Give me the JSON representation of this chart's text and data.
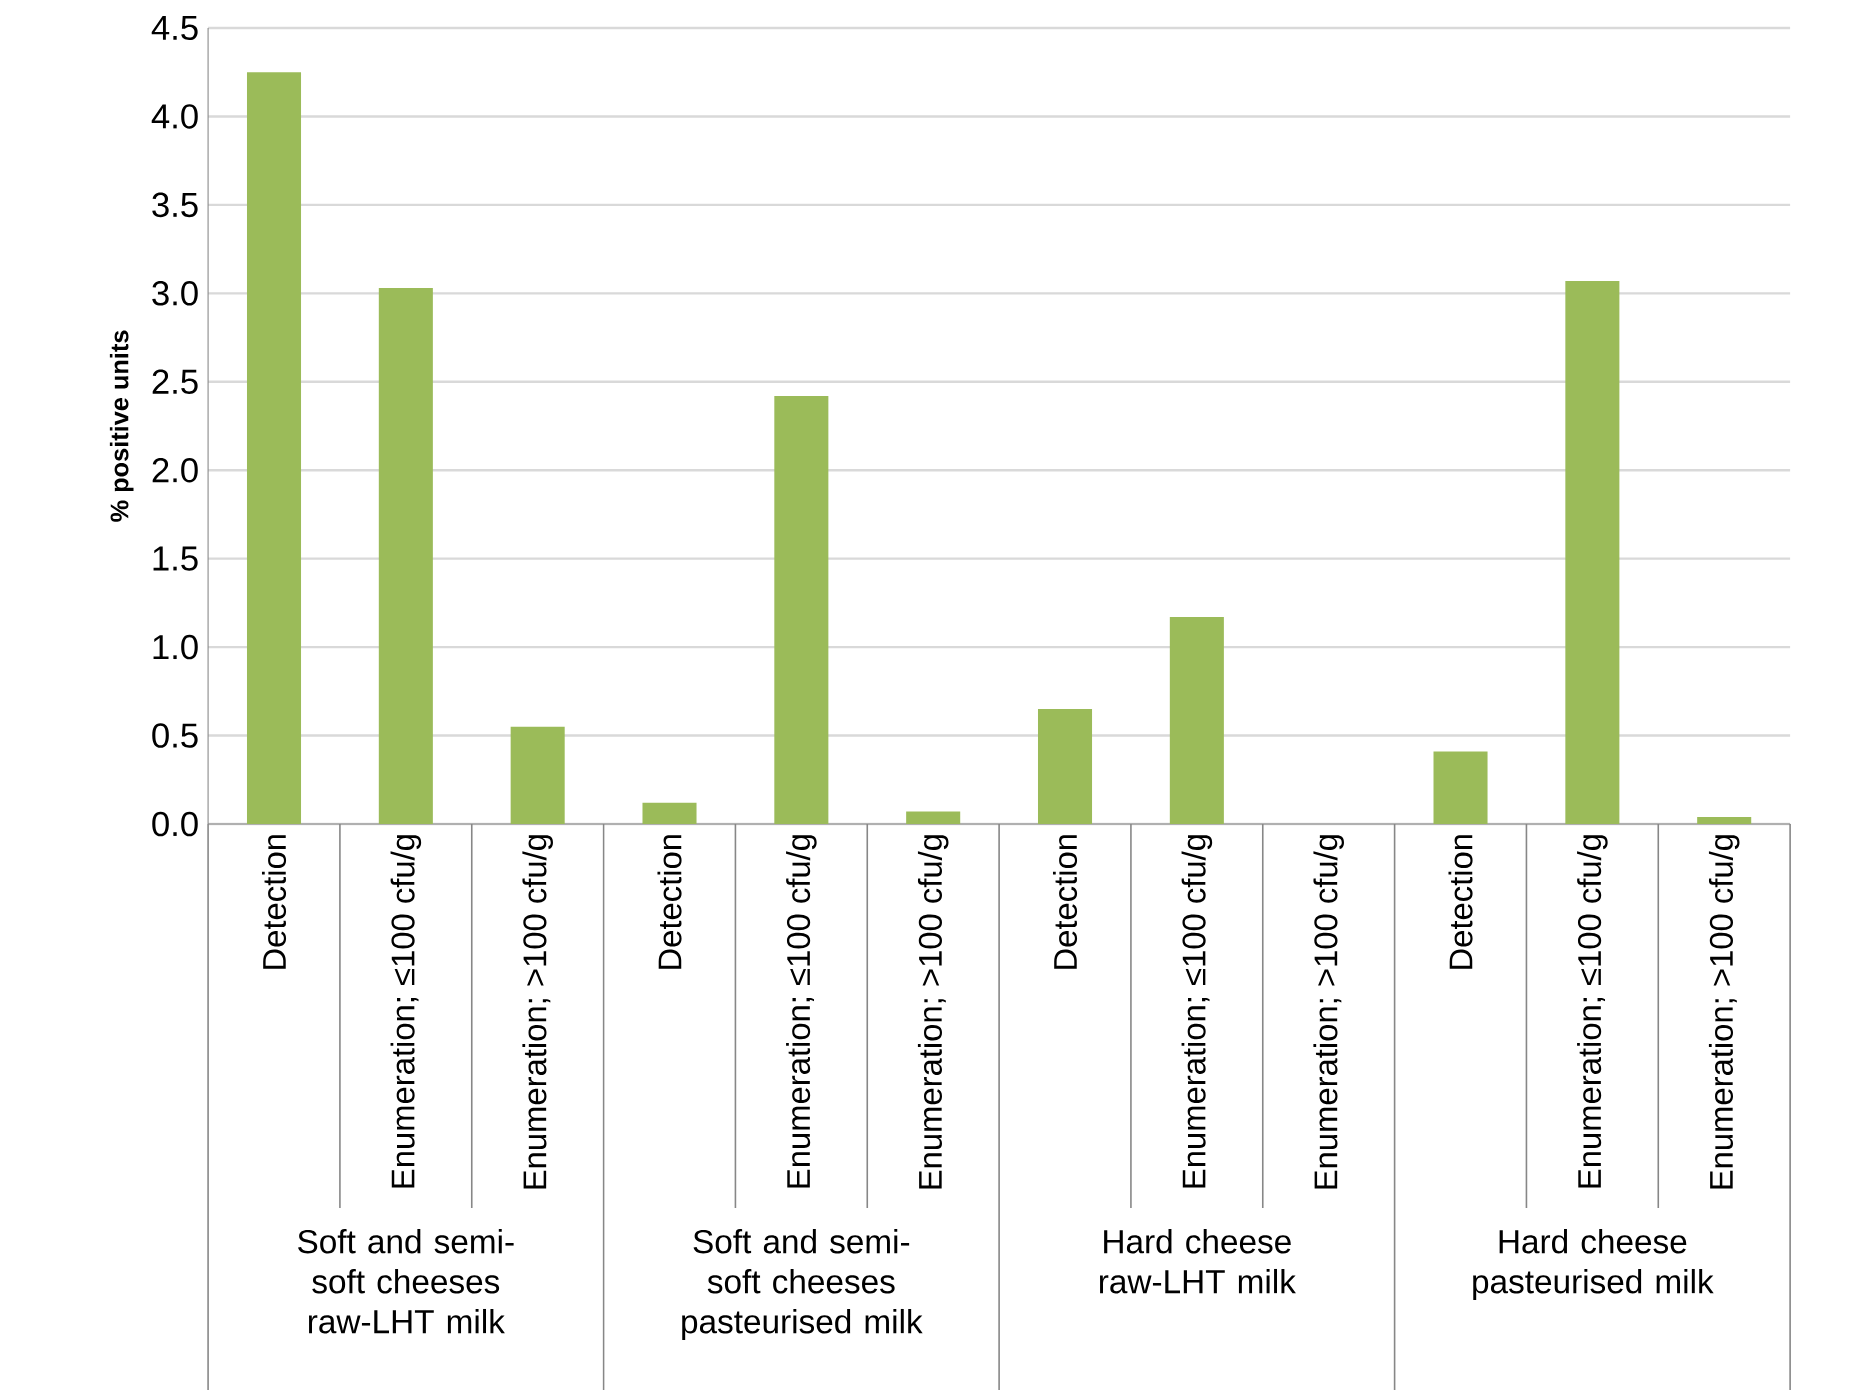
{
  "chart_data": {
    "type": "bar",
    "ylabel": "% positive units",
    "categories": [
      "Detection",
      "Enumeration; ≤100 cfu/g",
      "Enumeration; >100 cfu/g",
      "Detection",
      "Enumeration; ≤100 cfu/g",
      "Enumeration; >100 cfu/g",
      "Detection",
      "Enumeration; ≤100 cfu/g",
      "Enumeration; >100 cfu/g",
      "Detection",
      "Enumeration; ≤100 cfu/g",
      "Enumeration; >100 cfu/g"
    ],
    "values": [
      4.25,
      3.03,
      0.55,
      0.12,
      2.42,
      0.07,
      0.65,
      1.17,
      0,
      0.41,
      3.07,
      0.04
    ],
    "color": "#9bbb59",
    "ylim": [
      0,
      4.5
    ],
    "yticks": [
      {
        "value": 0,
        "label": "0.0"
      },
      0.5,
      {
        "value": 1,
        "label": "1.0"
      },
      1.5,
      {
        "value": 2,
        "label": "2.0"
      },
      2.5,
      {
        "value": 3,
        "label": "3.0"
      },
      3.5,
      {
        "value": 4,
        "label": "4.0"
      },
      4.5
    ],
    "grid": "y",
    "annotations": [
      "Soft and semi-soft cheeses raw-LHT milk",
      "Soft and semi-soft cheeses pasteurised milk",
      "Hard cheese raw-LHT milk",
      "Hard cheese pasteurised milk"
    ]
  }
}
